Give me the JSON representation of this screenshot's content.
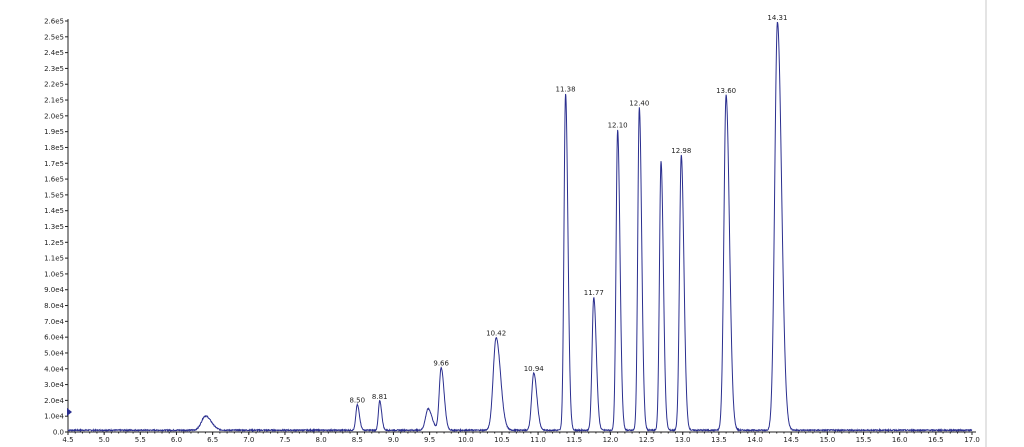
{
  "chart_data": {
    "type": "line",
    "title": "",
    "xlabel": "",
    "ylabel": "",
    "xlim": [
      4.5,
      17.0
    ],
    "ylim": [
      0,
      260000
    ],
    "grid": false,
    "x_ticks": [
      "4.5",
      "5.0",
      "5.5",
      "6.0",
      "6.5",
      "7.0",
      "7.5",
      "8.0",
      "8.5",
      "9.0",
      "9.5",
      "10.0",
      "10.5",
      "11.0",
      "11.5",
      "12.0",
      "12.5",
      "13.0",
      "13.5",
      "14.0",
      "14.5",
      "15.0",
      "15.5",
      "16.0",
      "16.5",
      "17.0"
    ],
    "y_ticks": [
      "0.0",
      "1.0e4",
      "2.0e4",
      "3.0e4",
      "4.0e4",
      "5.0e4",
      "6.0e4",
      "7.0e4",
      "8.0e4",
      "9.0e4",
      "1.0e5",
      "1.1e5",
      "1.2e5",
      "1.3e5",
      "1.4e5",
      "1.5e5",
      "1.6e5",
      "1.7e5",
      "1.8e5",
      "1.9e5",
      "2.0e5",
      "2.1e5",
      "2.2e5",
      "2.3e5",
      "2.4e5",
      "2.5e5",
      "2.6e5"
    ],
    "series": [
      {
        "color": "#2b2f8f",
        "baseline": 800,
        "peaks": [
          {
            "x": 6.4,
            "y": 9000,
            "width": 0.06,
            "label": ""
          },
          {
            "x": 8.5,
            "y": 16000,
            "width": 0.022,
            "label": "8.50"
          },
          {
            "x": 8.81,
            "y": 18500,
            "width": 0.02,
            "label": "8.81"
          },
          {
            "x": 9.48,
            "y": 13500,
            "width": 0.04,
            "label": ""
          },
          {
            "x": 9.66,
            "y": 39500,
            "width": 0.03,
            "label": "9.66"
          },
          {
            "x": 10.42,
            "y": 58500,
            "width": 0.045,
            "label": "10.42"
          },
          {
            "x": 10.94,
            "y": 36000,
            "width": 0.032,
            "label": "10.94"
          },
          {
            "x": 11.38,
            "y": 213000,
            "width": 0.024,
            "label": "11.38"
          },
          {
            "x": 11.77,
            "y": 84000,
            "width": 0.026,
            "label": "11.77"
          },
          {
            "x": 12.1,
            "y": 190000,
            "width": 0.024,
            "label": "12.10"
          },
          {
            "x": 12.4,
            "y": 204000,
            "width": 0.024,
            "label": "12.40"
          },
          {
            "x": 12.7,
            "y": 170000,
            "width": 0.024,
            "label": ""
          },
          {
            "x": 12.98,
            "y": 174000,
            "width": 0.027,
            "label": "12.98"
          },
          {
            "x": 13.6,
            "y": 212000,
            "width": 0.034,
            "label": "13.60"
          },
          {
            "x": 14.31,
            "y": 258000,
            "width": 0.042,
            "label": "14.31"
          }
        ]
      }
    ]
  }
}
